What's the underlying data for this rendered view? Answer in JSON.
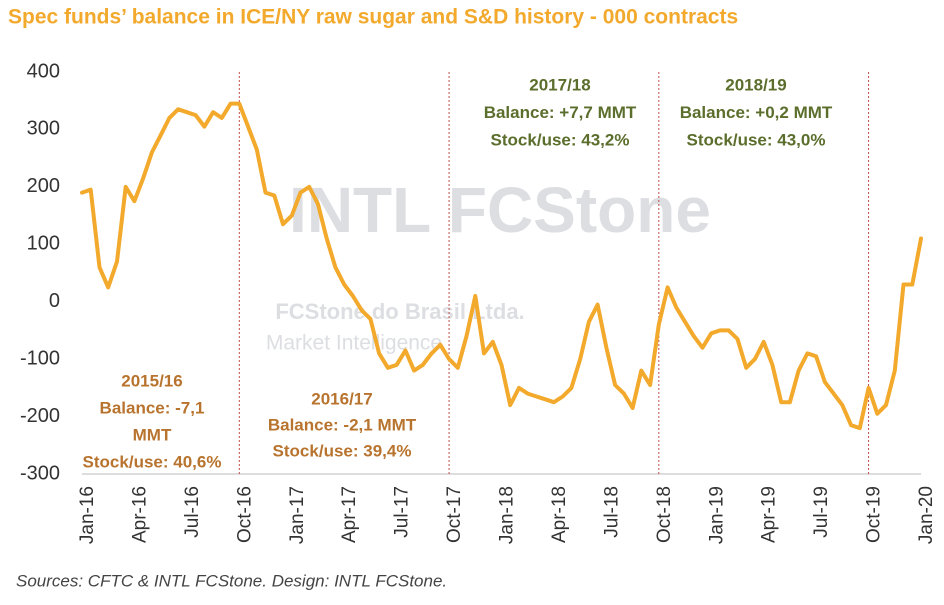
{
  "chart_data": {
    "type": "line",
    "title": "Spec funds’ balance in ICE/NY raw sugar and S&D history - 000 contracts",
    "source": "Sources: CFTC & INTL FCStone. Design: INTL FCStone.",
    "watermark": [
      "INTL FCStone",
      "FCStone do Brasil Ltda.",
      "Market Intelligence"
    ],
    "categories": [
      "Jan-16",
      null,
      null,
      null,
      null,
      null,
      "Apr-16",
      null,
      null,
      null,
      null,
      null,
      "Jul-16",
      null,
      null,
      null,
      null,
      null,
      "Oct-16",
      null,
      null,
      null,
      null,
      null,
      "Jan-17",
      null,
      null,
      null,
      null,
      null,
      "Apr-17",
      null,
      null,
      null,
      null,
      null,
      "Jul-17",
      null,
      null,
      null,
      null,
      null,
      "Oct-17",
      null,
      null,
      null,
      null,
      null,
      "Jan-18",
      null,
      null,
      null,
      null,
      null,
      "Apr-18",
      null,
      null,
      null,
      null,
      null,
      "Jul-18",
      null,
      null,
      null,
      null,
      null,
      "Oct-18",
      null,
      null,
      null,
      null,
      null,
      "Jan-19",
      null,
      null,
      null,
      null,
      null,
      "Apr-19",
      null,
      null,
      null,
      null,
      null,
      "Jul-19",
      null,
      null,
      null,
      null,
      null,
      "Oct-19",
      null,
      null,
      null,
      null,
      null,
      "Jan-20"
    ],
    "series": [
      {
        "name": "Spec funds’ balance",
        "color": "#f2a92c",
        "values": [
          190,
          195,
          60,
          25,
          70,
          200,
          175,
          215,
          260,
          290,
          320,
          335,
          330,
          325,
          305,
          330,
          320,
          345,
          345,
          305,
          265,
          190,
          185,
          135,
          150,
          190,
          200,
          170,
          110,
          60,
          30,
          10,
          -15,
          -30,
          -90,
          -115,
          -110,
          -85,
          -120,
          -110,
          -90,
          -75,
          -100,
          -115,
          -60,
          10,
          -90,
          -70,
          -110,
          -180,
          -150,
          -160,
          -165,
          -170,
          -175,
          -165,
          -150,
          -100,
          -35,
          -5,
          -80,
          -145,
          -160,
          -185,
          -120,
          -145,
          -40,
          25,
          -10,
          -35,
          -60,
          -80,
          -55,
          -50,
          -50,
          -65,
          -115,
          -100,
          -70,
          -110,
          -175,
          -175,
          -120,
          -90,
          -95,
          -140,
          -160,
          -180,
          -215,
          -220,
          -150,
          -195,
          -180,
          -120,
          30,
          30,
          110
        ]
      }
    ],
    "ylim": [
      -300,
      400
    ],
    "yticks": [
      -300,
      -200,
      -100,
      0,
      100,
      200,
      300,
      400
    ],
    "grid": false,
    "annotations": [
      {
        "lines": [
          "2015/16",
          "Balance: -7,1",
          "MMT",
          "Stock/use: 40,6%"
        ],
        "color": "#b8742e"
      },
      {
        "lines": [
          "2016/17",
          "Balance: -2,1 MMT",
          "Stock/use: 39,4%"
        ],
        "color": "#b8742e"
      },
      {
        "lines": [
          "2017/18",
          "Balance: +7,7 MMT",
          "Stock/use: 43,2%"
        ],
        "color": "#5b6e2c"
      },
      {
        "lines": [
          "2018/19",
          "Balance: +0,2 MMT",
          "Stock/use: 43,0%"
        ],
        "color": "#5b6e2c"
      }
    ]
  }
}
